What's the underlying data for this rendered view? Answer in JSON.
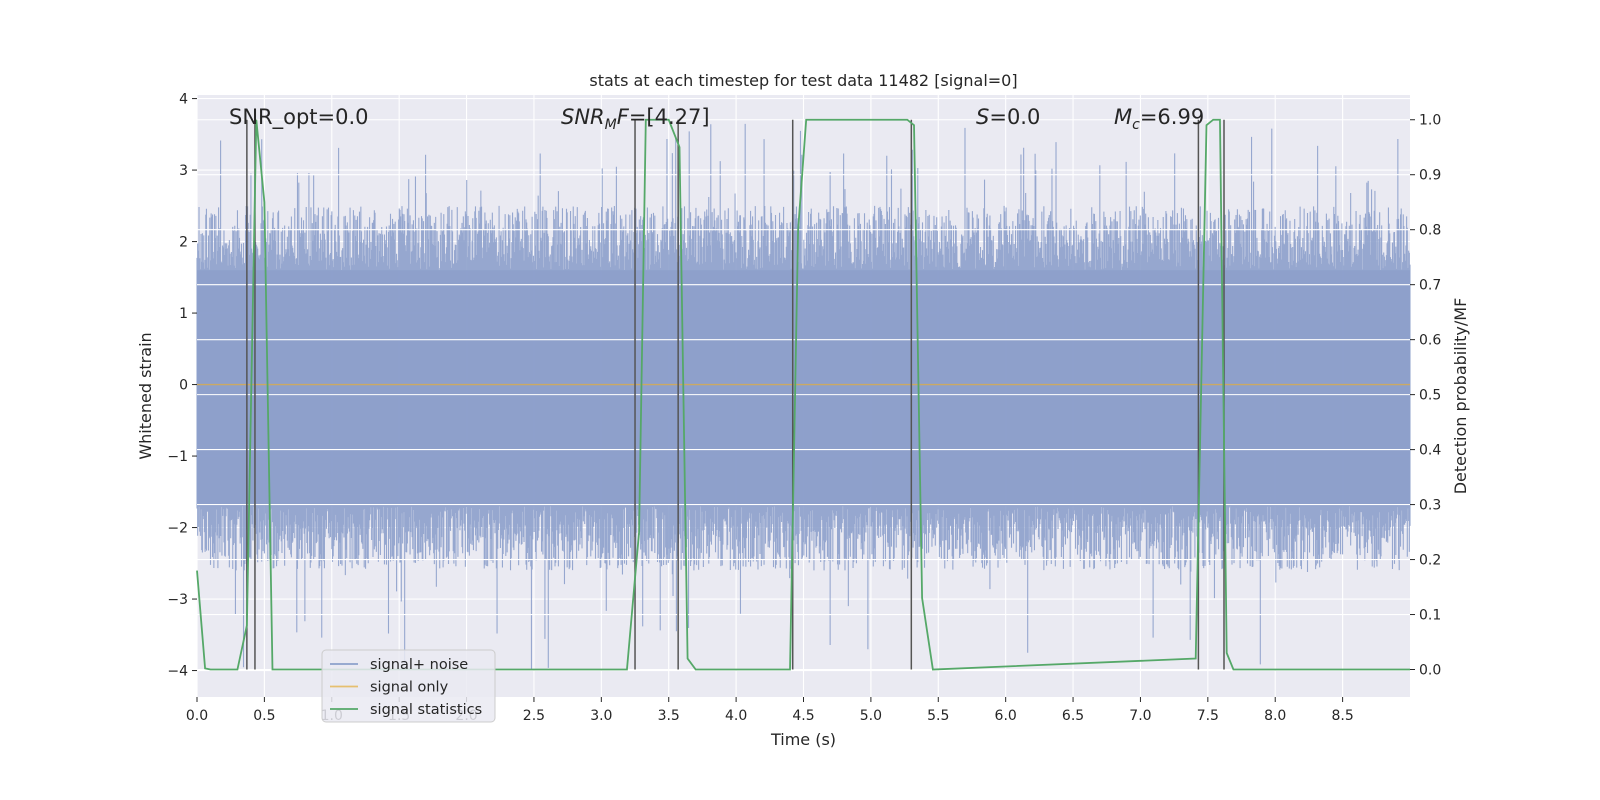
{
  "chart_data": {
    "type": "line",
    "title": "stats at each timestep for test data 11482 [signal=0]",
    "xlabel": "Time (s)",
    "ylabel_left": "Whitened strain",
    "ylabel_right": "Detection probability/MF",
    "xlim": [
      0,
      9.0
    ],
    "ylim_left": [
      -4.37,
      4.05
    ],
    "ylim_right": [
      -0.05,
      1.045
    ],
    "xticks": [
      "0.0",
      "0.5",
      "1.0",
      "1.5",
      "2.0",
      "2.5",
      "3.0",
      "3.5",
      "4.0",
      "4.5",
      "5.0",
      "5.5",
      "6.0",
      "6.5",
      "7.0",
      "7.5",
      "8.0",
      "8.5"
    ],
    "yticks_left": [
      "4",
      "3",
      "2",
      "1",
      "0",
      "−1",
      "−2",
      "−3",
      "−4"
    ],
    "yticks_right": [
      "1.0",
      "0.9",
      "0.8",
      "0.7",
      "0.6",
      "0.5",
      "0.4",
      "0.3",
      "0.2",
      "0.1",
      "0.0"
    ],
    "grid": true,
    "legend_location": "lower-left",
    "annotations": {
      "snr_opt": "SNR_opt=0.0",
      "snr_mf_main": "SNR",
      "snr_mf_sub": "M",
      "snr_mf_rest": "F=[4.27]",
      "s_main": "S",
      "s_rest": "=0.0",
      "mc_main": "M",
      "mc_sub": "c",
      "mc_rest": "=6.99"
    },
    "series": [
      {
        "name": "signal+ noise",
        "color": "#8da0cb",
        "style": "noise band",
        "band_approx": [
          -1.7,
          1.6
        ],
        "peak_max": 3.65,
        "peak_min": -4.0
      },
      {
        "name": "signal only",
        "color": "#e5ae38",
        "values_constant": 0.0
      },
      {
        "name": "signal statistics",
        "color": "#55a868",
        "x": [
          0.0,
          0.06,
          0.1,
          0.3,
          0.37,
          0.44,
          0.5,
          0.56,
          3.0,
          3.19,
          3.28,
          3.33,
          3.5,
          3.58,
          3.64,
          3.7,
          4.4,
          4.46,
          4.52,
          5.27,
          5.32,
          5.38,
          5.46,
          7.41,
          7.49,
          7.54,
          7.59,
          7.64,
          7.69,
          7.76,
          9.0
        ],
        "y": [
          0.18,
          0.002,
          0.0,
          0.0,
          0.08,
          1.0,
          0.85,
          0.0,
          0.0,
          0.0,
          0.25,
          1.0,
          1.0,
          0.95,
          0.02,
          0.0,
          0.0,
          0.8,
          1.0,
          1.0,
          0.99,
          0.13,
          0.0,
          0.02,
          0.99,
          1.0,
          1.0,
          0.03,
          0.0,
          0.0,
          0.0
        ]
      }
    ],
    "marker_lines_x": [
      0.37,
      0.43,
      3.25,
      3.57,
      4.42,
      5.3,
      7.43,
      7.62
    ],
    "marker_line_color": "#555555"
  }
}
